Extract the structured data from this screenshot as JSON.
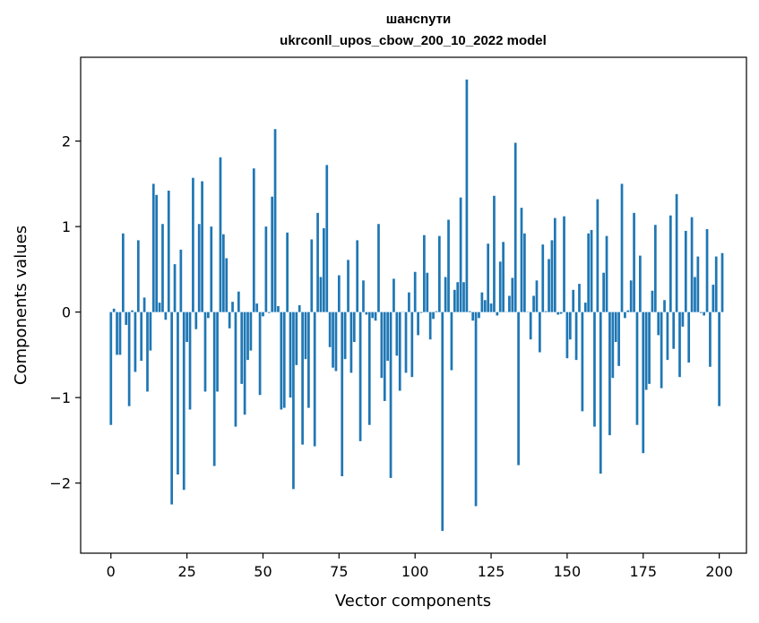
{
  "chart_data": {
    "type": "bar",
    "title_line1": "шансnути",
    "title_line2": "ukrconll_upos_cbow_200_10_2022 model",
    "xlabel": "Vector components",
    "ylabel": "Components values",
    "xlim": [
      -9.95,
      208.95
    ],
    "ylim": [
      -2.82,
      2.98
    ],
    "xticks": [
      0,
      25,
      50,
      75,
      100,
      125,
      150,
      175,
      200
    ],
    "yticks": [
      -2,
      -1,
      0,
      1,
      2
    ],
    "ytick_labels": [
      "−2",
      "−1",
      "0",
      "1",
      "2"
    ],
    "bar_color": "#1f77b4",
    "values": [
      -1.32,
      0.04,
      -0.5,
      -0.5,
      0.92,
      -0.15,
      -1.1,
      0.02,
      -0.7,
      0.84,
      -0.57,
      0.17,
      -0.93,
      -0.45,
      1.5,
      1.37,
      0.11,
      1.03,
      -0.09,
      1.42,
      -2.25,
      0.56,
      -1.9,
      0.73,
      -2.08,
      -0.35,
      -1.14,
      1.57,
      -0.2,
      1.03,
      1.53,
      -0.93,
      -0.07,
      1.0,
      -1.8,
      -0.93,
      1.81,
      0.91,
      0.63,
      -0.19,
      0.12,
      -1.34,
      0.24,
      -0.84,
      -1.2,
      -0.56,
      -0.45,
      1.68,
      0.1,
      -0.97,
      -0.05,
      1.0,
      -0.01,
      1.35,
      2.14,
      0.07,
      -1.14,
      -1.12,
      0.93,
      -1.0,
      -2.07,
      -0.62,
      0.08,
      -1.55,
      -0.55,
      -1.12,
      0.85,
      -1.57,
      1.16,
      0.41,
      0.98,
      1.72,
      -0.41,
      -0.65,
      -0.69,
      0.43,
      -1.92,
      -0.55,
      0.61,
      -0.71,
      -0.35,
      0.84,
      -1.51,
      0.37,
      -0.03,
      -1.32,
      -0.07,
      -0.1,
      1.03,
      -0.77,
      -1.04,
      -0.57,
      -1.94,
      0.39,
      -0.51,
      -0.92,
      0.0,
      -0.71,
      0.23,
      -0.76,
      0.47,
      -0.27,
      -0.01,
      0.9,
      0.46,
      -0.32,
      -0.08,
      0.01,
      0.89,
      -2.56,
      0.41,
      1.08,
      -0.68,
      0.26,
      0.35,
      1.34,
      0.35,
      2.72,
      0.01,
      -0.1,
      -2.27,
      -0.07,
      0.23,
      0.14,
      0.8,
      0.1,
      1.36,
      -0.04,
      0.59,
      0.82,
      0.0,
      0.19,
      0.4,
      1.98,
      -1.79,
      1.22,
      0.92,
      0.0,
      -0.32,
      0.19,
      0.37,
      -0.47,
      0.79,
      0.01,
      0.62,
      0.84,
      1.1,
      -0.03,
      -0.02,
      1.12,
      -0.54,
      -0.32,
      0.26,
      -0.56,
      0.33,
      -1.16,
      0.11,
      0.92,
      0.96,
      -1.34,
      1.32,
      -1.89,
      0.46,
      0.89,
      -1.44,
      -0.77,
      -0.35,
      -0.63,
      1.5,
      -0.07,
      0.02,
      0.37,
      1.16,
      -1.32,
      0.66,
      -1.65,
      -0.91,
      -0.84,
      0.25,
      1.02,
      -0.27,
      -0.89,
      0.14,
      -0.56,
      1.13,
      -0.43,
      1.38,
      -0.76,
      -0.17,
      0.95,
      -0.59,
      1.11,
      0.41,
      0.65,
      -0.01,
      -0.04,
      0.97,
      -0.64,
      0.32,
      0.65,
      -1.1,
      0.69
    ]
  }
}
